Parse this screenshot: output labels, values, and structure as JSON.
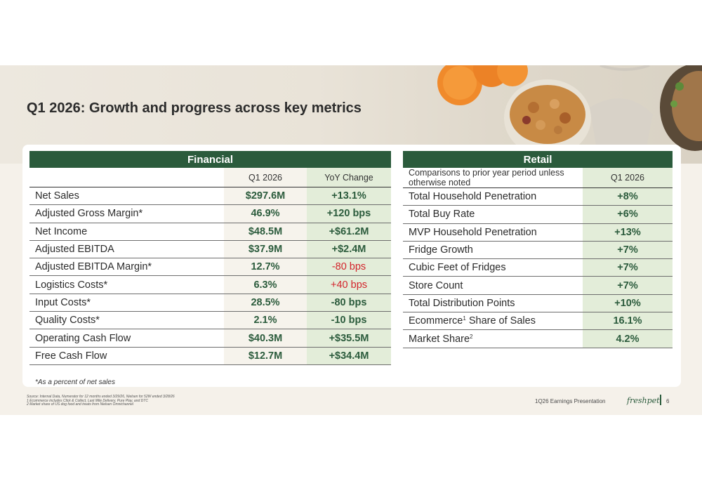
{
  "title": "Q1 2026: Growth and progress across key metrics",
  "financial": {
    "header": "Financial",
    "columns": [
      "",
      "Q1 2026",
      "YoY Change"
    ],
    "rows": [
      {
        "label": "Net Sales",
        "value": "$297.6M",
        "change": "+13.1%",
        "change_negative": false
      },
      {
        "label": "Adjusted Gross Margin*",
        "value": "46.9%",
        "change": "+120 bps",
        "change_negative": false
      },
      {
        "label": "Net Income",
        "value": "$48.5M",
        "change": "+$61.2M",
        "change_negative": false
      },
      {
        "label": "Adjusted EBITDA",
        "value": "$37.9M",
        "change": "+$2.4M",
        "change_negative": false
      },
      {
        "label": "Adjusted EBITDA Margin*",
        "value": "12.7%",
        "change": "-80 bps",
        "change_negative": true
      },
      {
        "label": "Logistics Costs*",
        "value": "6.3%",
        "change": "+40 bps",
        "change_negative": true
      },
      {
        "label": "Input Costs*",
        "value": "28.5%",
        "change": "-80 bps",
        "change_negative": false
      },
      {
        "label": "Quality Costs*",
        "value": "2.1%",
        "change": "-10 bps",
        "change_negative": false
      },
      {
        "label": "Operating Cash Flow",
        "value": "$40.3M",
        "change": "+$35.5M",
        "change_negative": false
      },
      {
        "label": "Free Cash Flow",
        "value": "$12.7M",
        "change": "+$34.4M",
        "change_negative": false
      }
    ]
  },
  "retail": {
    "header": "Retail",
    "subheader_note": "Comparisons to prior year period unless otherwise noted",
    "column": "Q1 2026",
    "rows": [
      {
        "label": "Total Household Penetration",
        "sup": "",
        "value": "+8%"
      },
      {
        "label": "Total Buy Rate",
        "sup": "",
        "value": "+6%"
      },
      {
        "label": "MVP Household Penetration",
        "sup": "",
        "value": "+13%"
      },
      {
        "label": "Fridge Growth",
        "sup": "",
        "value": "+7%"
      },
      {
        "label": "Cubic Feet of Fridges",
        "sup": "",
        "value": "+7%"
      },
      {
        "label": "Store Count",
        "sup": "",
        "value": "+7%"
      },
      {
        "label": "Total Distribution Points",
        "sup": "",
        "value": "+10%"
      },
      {
        "label": "Ecommerce",
        "sup": "1",
        "label_after": " Share of Sales",
        "value": "16.1%"
      },
      {
        "label": "Market Share",
        "sup": "2",
        "label_after": "",
        "value": "4.2%"
      }
    ]
  },
  "footnote": "*As a percent of net sales",
  "sources": [
    "Source: Internal Data, Numerator for 12 months ended 3/29/26, Nielsen for 52W ended 3/28/26",
    "1 Ecommerce includes Click & Collect, Last Mile Delivery, Pure Play, and DTC",
    "2 Market share of US dog food and treats from Nielsen Omnichannel"
  ],
  "footer": {
    "presentation": "1Q26 Earnings Presentation",
    "logo": "freshpet",
    "page": "6"
  },
  "colors": {
    "brand_green": "#2b5b3c",
    "negative_red": "#d3242b",
    "change_column_bg": "#e3edd9"
  }
}
